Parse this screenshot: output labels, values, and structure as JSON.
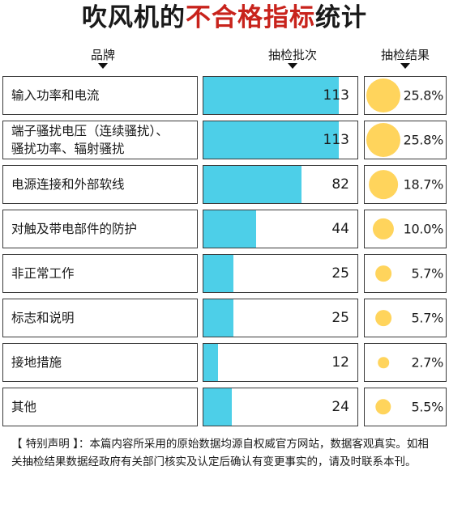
{
  "title": {
    "part1": "吹风机的",
    "part2": "不合格指标",
    "part3": "统计"
  },
  "columns": {
    "category": "品牌",
    "count": "抽检批次",
    "result": "抽检结果"
  },
  "chart_data": {
    "type": "bar",
    "title": "吹风机的不合格指标统计",
    "categories": [
      "输入功率和电流",
      "端子骚扰电压（连续骚扰）、骚扰功率、辐射骚扰",
      "电源连接和外部软线",
      "对触及带电部件的防护",
      "非正常工作",
      "标志和说明",
      "接地措施",
      "其他"
    ],
    "series": [
      {
        "name": "抽检批次",
        "values": [
          113,
          113,
          82,
          44,
          25,
          25,
          12,
          24
        ]
      },
      {
        "name": "抽检结果",
        "values": [
          25.8,
          25.8,
          18.7,
          10.0,
          5.7,
          5.7,
          2.7,
          5.5
        ]
      }
    ],
    "count_labels": [
      "113",
      "113",
      "82",
      "44",
      "25",
      "25",
      "12",
      "24"
    ],
    "percent_labels": [
      "25.8%",
      "25.8%",
      "18.7%",
      "10.0%",
      "5.7%",
      "5.7%",
      "2.7%",
      "5.5%"
    ],
    "category_display": [
      "输入功率和电流",
      "端子骚扰电压（连续骚扰）、\n骚扰功率、辐射骚扰",
      "电源连接和外部软线",
      "对触及带电部件的防护",
      "非正常工作",
      "标志和说明",
      "接地措施",
      "其他"
    ],
    "xlim": [
      0,
      130
    ],
    "colors": {
      "bar": "#4dcfe8",
      "circle": "#ffd45c",
      "accent": "#c8231c"
    }
  },
  "note": "【 特别声明 】：本篇内容所采用的原始数据均源自权威官方网站，数据客观真实。如相关抽检结果数据经政府有关部门核实及认定后确认有变更事实的，请及时联系本刊。"
}
